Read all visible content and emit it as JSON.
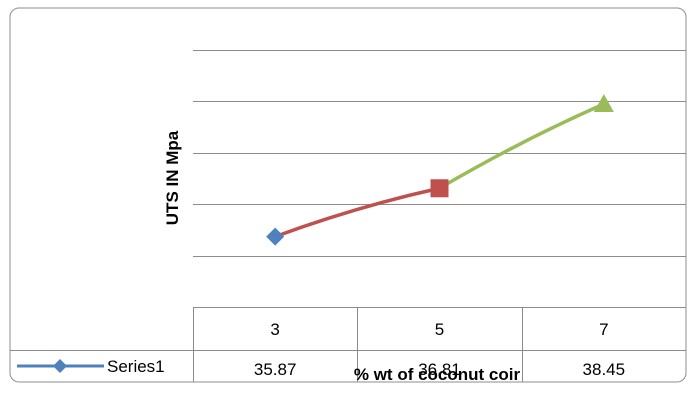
{
  "chart_data": {
    "type": "line",
    "categories": [
      "3",
      "5",
      "7"
    ],
    "series": [
      {
        "name": "Series1",
        "values": [
          35.87,
          36.81,
          38.45
        ],
        "value_labels": [
          "35.87",
          "36.81",
          "38.45"
        ],
        "color": "#4f81bd",
        "segment_colors": [
          "#c0504d",
          "#9bbb59"
        ],
        "marker_colors": [
          "#4f81bd",
          "#c0504d",
          "#9bbb59"
        ],
        "markers": [
          "diamond",
          "square",
          "triangle"
        ]
      }
    ],
    "title": "",
    "xlabel": "% wt of coconut coir",
    "ylabel": "UTS IN Mpa",
    "ylim": [
      34.5,
      39.5
    ],
    "ytick_step": 1,
    "grid": true,
    "data_table": true,
    "legend": "in-data-table"
  }
}
